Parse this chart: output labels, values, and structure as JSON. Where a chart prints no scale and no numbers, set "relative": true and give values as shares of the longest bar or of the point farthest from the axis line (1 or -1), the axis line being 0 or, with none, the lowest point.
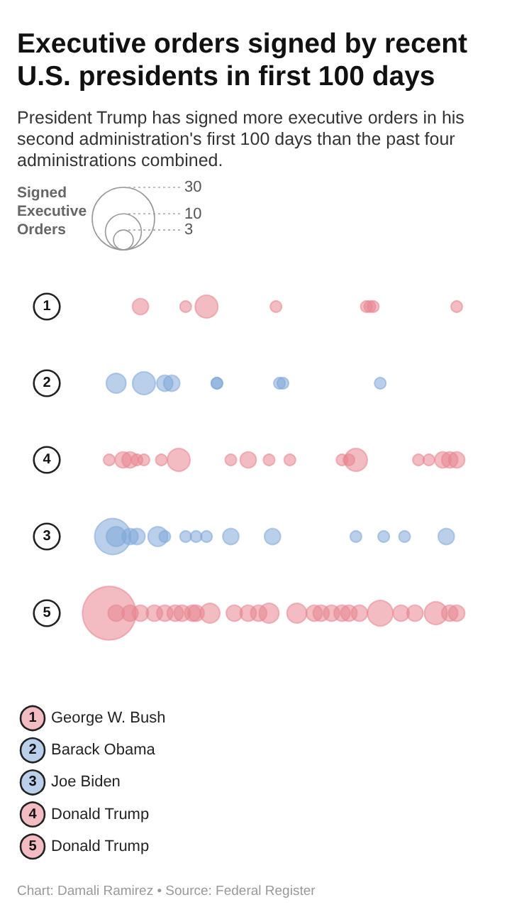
{
  "chart_data": {
    "type": "bubble",
    "title": "Executive orders signed by recent U.S. presidents in first 100 days",
    "subtitle": "President Trump has signed more executive orders in his second administration's first 100 days than the past four administrations combined.",
    "legend_title": "Signed Executive Orders",
    "size_legend": [
      3,
      10,
      30
    ],
    "orientation": "horizontal",
    "relative": true,
    "categories": [
      "1",
      "2",
      "4",
      "3",
      "5"
    ],
    "tick_labels": "y",
    "legend": "bottom",
    "annotations": [
      "Chart: Damali Ramirez • Source: Federal Register"
    ],
    "series": [
      {
        "name": "George W. Bush",
        "color": "#e8858f",
        "x": [
          "1",
          "1",
          "1",
          "1",
          "1",
          "1",
          "1",
          "1"
        ],
        "values": [
          0.09,
          0.22,
          0.28,
          0.48,
          0.74,
          0.75,
          0.76,
          1.0
        ],
        "sizes": [
          2,
          1,
          4,
          1,
          1,
          1,
          1,
          1
        ]
      },
      {
        "name": "Barack Obama",
        "color": "#7fa7d8",
        "x": [
          "2",
          "2",
          "2",
          "2",
          "2",
          "2",
          "2",
          "2",
          "2"
        ],
        "values": [
          0.02,
          0.1,
          0.16,
          0.18,
          0.31,
          0.31,
          0.49,
          0.5,
          0.78
        ],
        "sizes": [
          3,
          4,
          2,
          2,
          1,
          1,
          1,
          1,
          1
        ]
      },
      {
        "name": "Joe Biden",
        "color": "#7fa7d8",
        "x": [
          "3",
          "3",
          "3",
          "3",
          "3",
          "3",
          "3",
          "3",
          "3",
          "3",
          "3",
          "3",
          "3",
          "3",
          "3"
        ],
        "values": [
          0.01,
          0.02,
          0.06,
          0.08,
          0.14,
          0.16,
          0.22,
          0.25,
          0.28,
          0.35,
          0.47,
          0.71,
          0.79,
          0.85,
          0.97
        ],
        "sizes": [
          10,
          3,
          2,
          2,
          3,
          1,
          1,
          1,
          1,
          2,
          2,
          1,
          1,
          1,
          2
        ]
      },
      {
        "name": "Donald Trump",
        "color": "#e8858f",
        "x": [
          "4",
          "4",
          "4",
          "4",
          "4",
          "4",
          "4",
          "4",
          "4",
          "4",
          "4",
          "4",
          "4",
          "4",
          "4",
          "4",
          "4",
          "4",
          "4"
        ],
        "values": [
          0,
          0.04,
          0.06,
          0.08,
          0.1,
          0.15,
          0.2,
          0.35,
          0.4,
          0.46,
          0.52,
          0.67,
          0.69,
          0.71,
          0.89,
          0.92,
          0.96,
          0.98,
          1.0
        ],
        "sizes": [
          1,
          2,
          2,
          1,
          1,
          1,
          4,
          1,
          2,
          1,
          1,
          1,
          1,
          4,
          1,
          1,
          2,
          2,
          2
        ]
      },
      {
        "name": "Donald Trump",
        "color": "#e8858f",
        "x": [
          "5",
          "5",
          "5",
          "5",
          "5",
          "5",
          "5",
          "5",
          "5",
          "5",
          "5",
          "5",
          "5",
          "5",
          "5",
          "5",
          "5",
          "5",
          "5",
          "5",
          "5",
          "5",
          "5",
          "5",
          "5",
          "5",
          "5",
          "5"
        ],
        "values": [
          0,
          0.02,
          0.06,
          0.09,
          0.13,
          0.16,
          0.19,
          0.21,
          0.24,
          0.25,
          0.29,
          0.36,
          0.4,
          0.43,
          0.46,
          0.54,
          0.59,
          0.61,
          0.64,
          0.67,
          0.69,
          0.72,
          0.78,
          0.84,
          0.88,
          0.94,
          0.98,
          1.0
        ],
        "sizes": [
          22,
          2,
          2,
          2,
          2,
          2,
          2,
          2,
          2,
          2,
          3,
          2,
          2,
          2,
          3,
          3,
          2,
          2,
          2,
          2,
          2,
          2,
          5,
          2,
          2,
          4,
          2,
          2
        ]
      }
    ]
  }
}
